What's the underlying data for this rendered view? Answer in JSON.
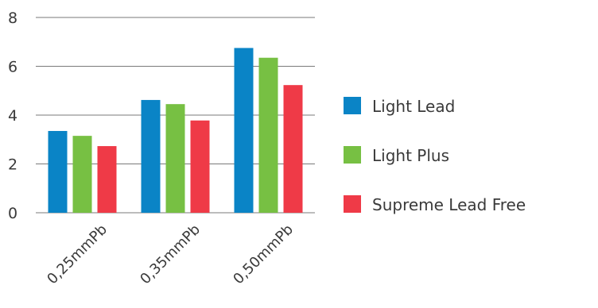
{
  "chart_data": {
    "type": "bar",
    "categories": [
      "0,25mmPb",
      "0,35mmPb",
      "0,50mmPb"
    ],
    "series": [
      {
        "name": "Light Lead",
        "color": "#0a84c6",
        "values": [
          3.35,
          4.62,
          6.75
        ]
      },
      {
        "name": "Light Plus",
        "color": "#77c043",
        "values": [
          3.15,
          4.45,
          6.35
        ]
      },
      {
        "name": "Supreme Lead Free",
        "color": "#ef3a47",
        "values": [
          2.73,
          3.78,
          5.23
        ]
      }
    ],
    "yticks": [
      "0",
      "2",
      "4",
      "6",
      "8"
    ],
    "ylim": [
      0,
      8
    ],
    "grid": true,
    "legend_position": "right"
  }
}
